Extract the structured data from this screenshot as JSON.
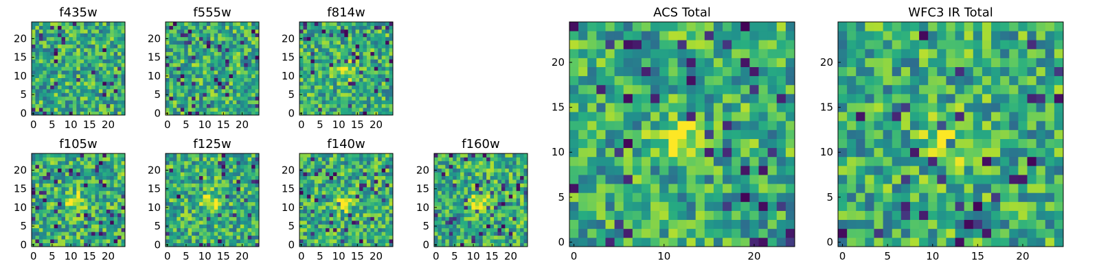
{
  "chart_data": [
    {
      "type": "heatmap",
      "title": "f435w",
      "xticks": [
        0,
        5,
        10,
        15,
        20
      ],
      "yticks": [
        0,
        5,
        10,
        15,
        20
      ],
      "grid_size": 25,
      "xlim": [
        0,
        25
      ],
      "ylim": [
        0,
        25
      ],
      "colormap": "viridis",
      "blob": null
    },
    {
      "type": "heatmap",
      "title": "f555w",
      "xticks": [
        0,
        5,
        10,
        15,
        20
      ],
      "yticks": [
        0,
        5,
        10,
        15,
        20
      ],
      "grid_size": 25,
      "xlim": [
        0,
        25
      ],
      "ylim": [
        0,
        25
      ],
      "colormap": "viridis",
      "blob": null
    },
    {
      "type": "heatmap",
      "title": "f814w",
      "xticks": [
        0,
        5,
        10,
        15,
        20
      ],
      "yticks": [
        0,
        5,
        10,
        15,
        20
      ],
      "grid_size": 25,
      "xlim": [
        0,
        25
      ],
      "ylim": [
        0,
        25
      ],
      "colormap": "viridis",
      "blob": [
        12,
        12
      ]
    },
    {
      "type": "heatmap",
      "title": "f105w",
      "xticks": [
        0,
        5,
        10,
        15,
        20
      ],
      "yticks": [
        0,
        5,
        10,
        15,
        20
      ],
      "grid_size": 25,
      "xlim": [
        0,
        25
      ],
      "ylim": [
        0,
        25
      ],
      "colormap": "viridis",
      "blob": [
        12,
        12
      ]
    },
    {
      "type": "heatmap",
      "title": "f125w",
      "xticks": [
        0,
        5,
        10,
        15,
        20
      ],
      "yticks": [
        0,
        5,
        10,
        15,
        20
      ],
      "grid_size": 25,
      "xlim": [
        0,
        25
      ],
      "ylim": [
        0,
        25
      ],
      "colormap": "viridis",
      "blob": [
        12,
        12
      ]
    },
    {
      "type": "heatmap",
      "title": "f140w",
      "xticks": [
        0,
        5,
        10,
        15,
        20
      ],
      "yticks": [
        0,
        5,
        10,
        15,
        20
      ],
      "grid_size": 25,
      "xlim": [
        0,
        25
      ],
      "ylim": [
        0,
        25
      ],
      "colormap": "viridis",
      "blob": [
        12,
        12
      ]
    },
    {
      "type": "heatmap",
      "title": "f160w",
      "xticks": [
        0,
        5,
        10,
        15,
        20
      ],
      "yticks": [
        0,
        5,
        10,
        15,
        20
      ],
      "grid_size": 25,
      "xlim": [
        0,
        25
      ],
      "ylim": [
        0,
        25
      ],
      "colormap": "viridis",
      "blob": [
        12,
        12
      ]
    },
    {
      "type": "heatmap",
      "title": "ACS Total",
      "xticks": [
        0,
        10,
        20
      ],
      "yticks": [
        0,
        5,
        10,
        15,
        20
      ],
      "grid_size": 25,
      "xlim": [
        0,
        25
      ],
      "ylim": [
        0,
        25
      ],
      "colormap": "viridis",
      "blob": [
        12,
        12
      ]
    },
    {
      "type": "heatmap",
      "title": "WFC3 IR Total",
      "xticks": [
        0,
        5,
        10,
        15,
        20
      ],
      "yticks": [
        0,
        5,
        10,
        15,
        20
      ],
      "grid_size": 25,
      "xlim": [
        0,
        25
      ],
      "ylim": [
        0,
        25
      ],
      "colormap": "viridis",
      "blob": [
        12,
        12
      ]
    }
  ],
  "colors": {
    "viridis_dark": "#440154",
    "viridis_blue": "#3b528b",
    "viridis_teal": "#21918c",
    "viridis_green": "#5ec962",
    "viridis_yellow": "#fde725"
  }
}
